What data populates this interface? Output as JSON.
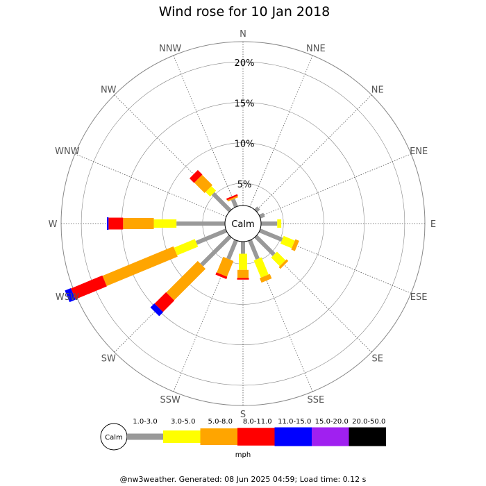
{
  "chart_data": {
    "type": "wind-rose",
    "title": "Wind rose for 10 Jan 2018",
    "directions": [
      "N",
      "NNE",
      "NE",
      "ENE",
      "E",
      "ESE",
      "SE",
      "SSE",
      "S",
      "SSW",
      "SW",
      "WSW",
      "W",
      "WNW",
      "NW",
      "NNW"
    ],
    "rings": [
      5,
      10,
      15,
      20
    ],
    "ring_labels": [
      "5%",
      "10%",
      "15%",
      "20%"
    ],
    "rmax_percent": 22.5,
    "center_label": "Calm",
    "unit": "mph",
    "speed_bins": [
      {
        "label": "1.0-3.0",
        "color": "#999999"
      },
      {
        "label": "3.0-5.0",
        "color": "#ffff00"
      },
      {
        "label": "5.0-8.0",
        "color": "#ffa500"
      },
      {
        "label": "8.0-11.0",
        "color": "#ff0000"
      },
      {
        "label": "11.0-15.0",
        "color": "#0000ff"
      },
      {
        "label": "15.0-20.0",
        "color": "#a020f0"
      },
      {
        "label": "20.0-50.0",
        "color": "#000000"
      }
    ],
    "frequencies": [
      {
        "dir": "N",
        "values": [
          0,
          0,
          0,
          0,
          0,
          0,
          0
        ]
      },
      {
        "dir": "NNE",
        "values": [
          0,
          0,
          0,
          0,
          0,
          0,
          0
        ]
      },
      {
        "dir": "NE",
        "values": [
          0.5,
          0,
          0,
          0,
          0,
          0,
          0
        ]
      },
      {
        "dir": "ENE",
        "values": [
          0.6,
          0,
          0,
          0,
          0,
          0,
          0
        ]
      },
      {
        "dir": "E",
        "values": [
          2.0,
          0.5,
          0,
          0,
          0,
          0,
          0
        ]
      },
      {
        "dir": "ESE",
        "values": [
          3.0,
          1.5,
          0.5,
          0,
          0,
          0,
          0
        ]
      },
      {
        "dir": "SE",
        "values": [
          3.2,
          1.5,
          0.3,
          0,
          0,
          0,
          0
        ]
      },
      {
        "dir": "SSE",
        "values": [
          2.5,
          2.3,
          0.6,
          0,
          0,
          0,
          0
        ]
      },
      {
        "dir": "S",
        "values": [
          1.5,
          2.0,
          1.0,
          0.2,
          0,
          0,
          0
        ]
      },
      {
        "dir": "SSW",
        "values": [
          2.5,
          0,
          2.1,
          0.3,
          0,
          0,
          0
        ]
      },
      {
        "dir": "SW",
        "values": [
          5.0,
          0,
          5.5,
          2.0,
          0.7,
          0,
          0
        ]
      },
      {
        "dir": "WSW",
        "values": [
          4.0,
          2.8,
          9.5,
          4.2,
          0.8,
          0,
          0
        ]
      },
      {
        "dir": "W",
        "values": [
          6.0,
          2.8,
          3.8,
          1.8,
          0.2,
          0,
          0
        ]
      },
      {
        "dir": "WNW",
        "values": [
          0,
          0,
          0,
          0,
          0,
          0,
          0
        ]
      },
      {
        "dir": "NW",
        "values": [
          3.0,
          0.8,
          1.8,
          0.8,
          0,
          0,
          0
        ]
      },
      {
        "dir": "NNW",
        "values": [
          1.0,
          0,
          0.2,
          0.2,
          0,
          0,
          0
        ]
      }
    ],
    "grid": true
  },
  "footer": "@nw3weather. Generated: 08 Jun 2025 04:59; Load time: 0.12 s"
}
